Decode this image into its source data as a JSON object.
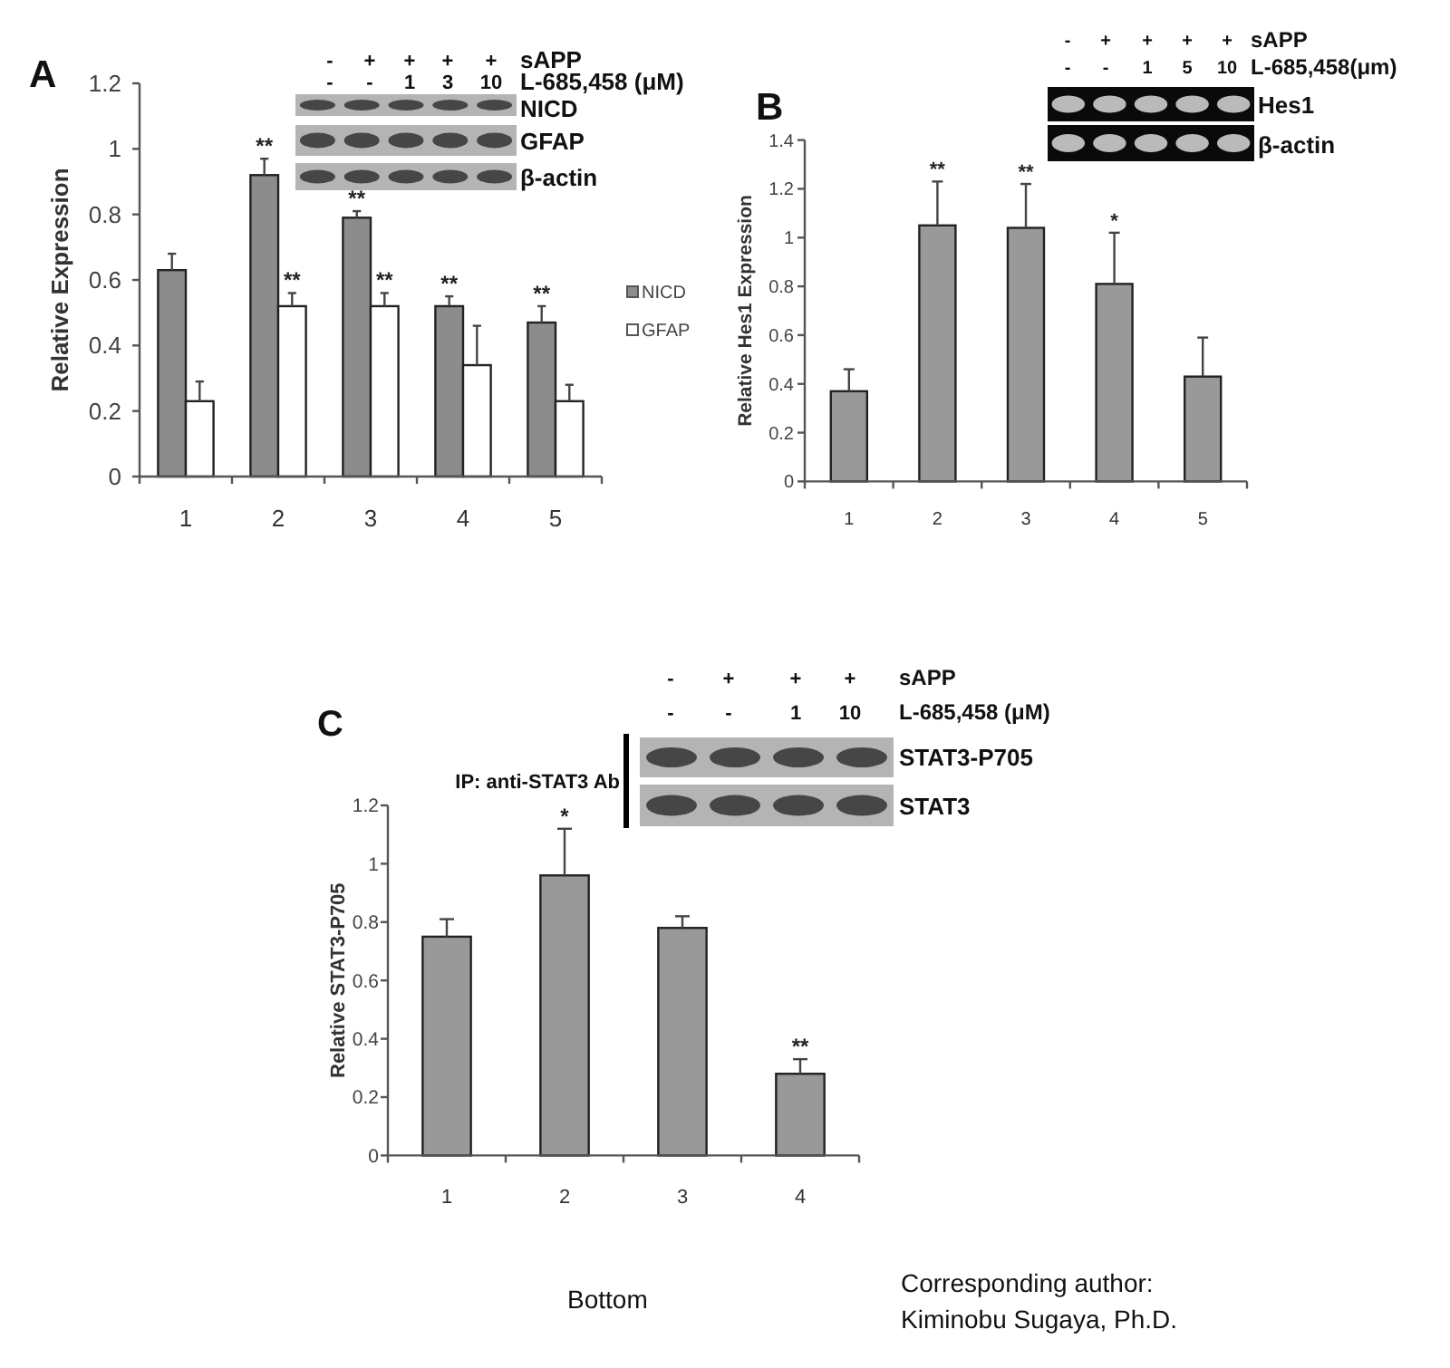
{
  "chart_data": [
    {
      "type": "bar",
      "title": "A",
      "ylabel": "Relative Expression",
      "categories": [
        "1",
        "2",
        "3",
        "4",
        "5"
      ],
      "series": [
        {
          "name": "NICD",
          "color": "#8c8c8c",
          "values": [
            0.63,
            0.92,
            0.79,
            0.52,
            0.47
          ],
          "errors": [
            [
              0.63,
              0.68
            ],
            [
              0.92,
              0.97
            ],
            [
              0.79,
              0.81
            ],
            [
              0.52,
              0.55
            ],
            [
              0.47,
              0.52
            ]
          ],
          "value_labels": [
            null,
            "**",
            "**",
            "**",
            "**"
          ]
        },
        {
          "name": "GFAP",
          "color": "#ffffff",
          "values": [
            0.23,
            0.52,
            0.52,
            0.34,
            0.23
          ],
          "errors": [
            [
              0.23,
              0.29
            ],
            [
              0.52,
              0.56
            ],
            [
              0.52,
              0.56
            ],
            [
              0.34,
              0.46
            ],
            [
              0.23,
              0.28
            ]
          ],
          "value_labels": [
            null,
            "**",
            "**",
            null,
            null
          ]
        }
      ],
      "ylim": [
        0,
        1.2
      ],
      "yticks": [
        0,
        0.2,
        0.4,
        0.6,
        0.8,
        1,
        1.2
      ],
      "legend": "right",
      "annotations": [
        "- + + + +",
        "sAPP",
        "- - 1 3 10",
        "L-685,458 (μM)",
        "NICD",
        "GFAP",
        "β-actin"
      ]
    },
    {
      "type": "bar",
      "title": "B",
      "ylabel": "Relative Hes1 Expression",
      "categories": [
        "1",
        "2",
        "3",
        "4",
        "5"
      ],
      "color": "#999999",
      "values": [
        0.37,
        1.05,
        1.04,
        0.81,
        0.43
      ],
      "errors": [
        [
          0.37,
          0.46
        ],
        [
          1.05,
          1.23
        ],
        [
          1.04,
          1.22
        ],
        [
          0.81,
          1.02
        ],
        [
          0.43,
          0.59
        ]
      ],
      "value_labels": [
        null,
        "**",
        "**",
        "*",
        null
      ],
      "ylim": [
        0,
        1.4
      ],
      "yticks": [
        0,
        0.2,
        0.4,
        0.6,
        0.8,
        1,
        1.2,
        1.4
      ],
      "annotations": [
        "- + + + +",
        "sAPP",
        "- - 1 5 10",
        "L-685,458(μm)",
        "Hes1",
        "β-actin"
      ]
    },
    {
      "type": "bar",
      "title": "C",
      "ylabel": "Relative STAT3-P705",
      "categories": [
        "1",
        "2",
        "3",
        "4"
      ],
      "color": "#999999",
      "values": [
        0.75,
        0.96,
        0.78,
        0.28
      ],
      "errors": [
        [
          0.75,
          0.81
        ],
        [
          0.96,
          1.12
        ],
        [
          0.78,
          0.82
        ],
        [
          0.28,
          0.33
        ]
      ],
      "value_labels": [
        null,
        "*",
        null,
        "**"
      ],
      "ylim": [
        0,
        1.2
      ],
      "yticks": [
        0,
        0.2,
        0.4,
        0.6,
        0.8,
        1,
        1.2
      ],
      "annotations": [
        "- + + +",
        "sAPP",
        "- - 1 10",
        "L-685,458 (μM)",
        "STAT3-P705",
        "STAT3",
        "IP: anti-STAT3 Ab",
        "Bottom",
        "Corresponding author:\nKiminobu Sugaya, Ph.D."
      ]
    }
  ]
}
